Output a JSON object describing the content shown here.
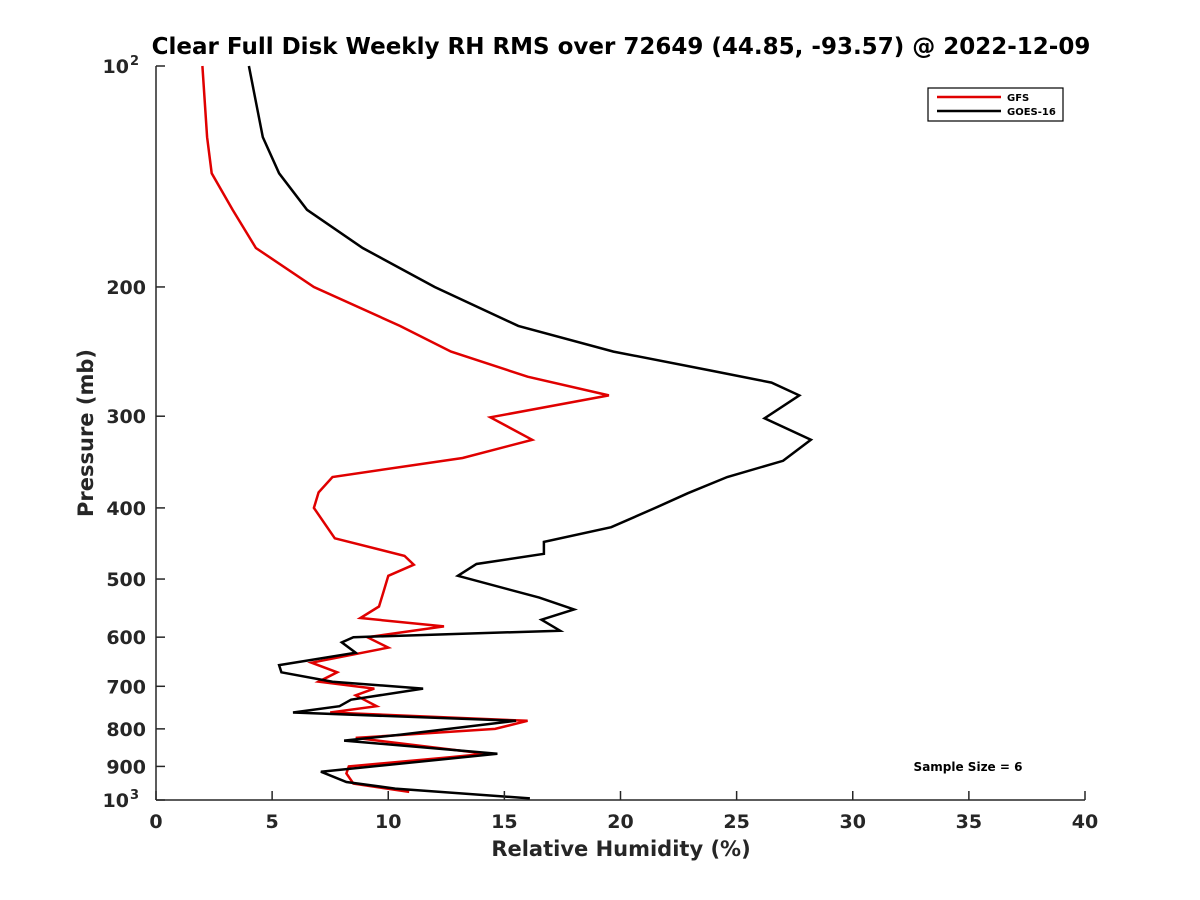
{
  "chart_data": {
    "type": "line",
    "title": "Clear Full Disk Weekly RH RMS over 72649 (44.85, -93.57) @ 2022-12-09",
    "xlabel": "Relative Humidity (%)",
    "ylabel": "Pressure (mb)",
    "xlim": [
      0,
      40
    ],
    "ylim": [
      100,
      1000
    ],
    "yscale": "log",
    "y_reversed": true,
    "x_ticks": [
      "0",
      "5",
      "10",
      "15",
      "20",
      "25",
      "30",
      "35",
      "40"
    ],
    "y_ticks": [
      {
        "value": 100,
        "base": "10",
        "exp": "2"
      },
      {
        "value": 200,
        "label": "200"
      },
      {
        "value": 300,
        "label": "300"
      },
      {
        "value": 400,
        "label": "400"
      },
      {
        "value": 500,
        "label": "500"
      },
      {
        "value": 600,
        "label": "600"
      },
      {
        "value": 700,
        "label": "700"
      },
      {
        "value": 800,
        "label": "800"
      },
      {
        "value": 900,
        "label": "900"
      },
      {
        "value": 1000,
        "base": "10",
        "exp": "3"
      }
    ],
    "legend_position": "top-right",
    "annotation": "Sample Size = 6",
    "series": [
      {
        "name": "GFS",
        "color": "#e00000",
        "points": [
          [
            2.0,
            100
          ],
          [
            2.2,
            125
          ],
          [
            2.4,
            140
          ],
          [
            3.3,
            157
          ],
          [
            4.3,
            177
          ],
          [
            6.8,
            200
          ],
          [
            10.5,
            226
          ],
          [
            12.7,
            245
          ],
          [
            16.0,
            265
          ],
          [
            19.5,
            281
          ],
          [
            14.4,
            301
          ],
          [
            16.2,
            323
          ],
          [
            13.2,
            342
          ],
          [
            7.6,
            363
          ],
          [
            7.0,
            381
          ],
          [
            6.8,
            400
          ],
          [
            7.7,
            440
          ],
          [
            10.7,
            465
          ],
          [
            11.1,
            478
          ],
          [
            10.0,
            495
          ],
          [
            9.8,
            520
          ],
          [
            9.6,
            545
          ],
          [
            8.8,
            565
          ],
          [
            12.4,
            580
          ],
          [
            9.1,
            600
          ],
          [
            10.0,
            620
          ],
          [
            6.7,
            650
          ],
          [
            7.8,
            670
          ],
          [
            7.0,
            690
          ],
          [
            9.4,
            705
          ],
          [
            8.6,
            720
          ],
          [
            9.5,
            745
          ],
          [
            7.5,
            760
          ],
          [
            16.0,
            780
          ],
          [
            14.6,
            800
          ],
          [
            8.6,
            823
          ],
          [
            14.2,
            865
          ],
          [
            12.6,
            875
          ],
          [
            8.3,
            900
          ],
          [
            8.2,
            920
          ],
          [
            8.5,
            950
          ],
          [
            10.9,
            975
          ]
        ]
      },
      {
        "name": "GOES-16",
        "color": "#000000",
        "points": [
          [
            4.0,
            100
          ],
          [
            4.6,
            125
          ],
          [
            5.3,
            140
          ],
          [
            6.5,
            157
          ],
          [
            8.9,
            177
          ],
          [
            12.0,
            200
          ],
          [
            15.6,
            226
          ],
          [
            19.7,
            245
          ],
          [
            23.9,
            260
          ],
          [
            26.5,
            270
          ],
          [
            27.7,
            281
          ],
          [
            26.2,
            302
          ],
          [
            28.2,
            323
          ],
          [
            27.0,
            345
          ],
          [
            24.6,
            363
          ],
          [
            22.9,
            382
          ],
          [
            21.5,
            400
          ],
          [
            19.6,
            425
          ],
          [
            16.7,
            445
          ],
          [
            16.7,
            462
          ],
          [
            13.8,
            477
          ],
          [
            13.0,
            495
          ],
          [
            16.5,
            530
          ],
          [
            18.0,
            550
          ],
          [
            16.6,
            568
          ],
          [
            17.4,
            588
          ],
          [
            8.5,
            600
          ],
          [
            8.0,
            610
          ],
          [
            8.6,
            630
          ],
          [
            5.3,
            655
          ],
          [
            5.4,
            670
          ],
          [
            7.6,
            690
          ],
          [
            11.5,
            705
          ],
          [
            8.4,
            730
          ],
          [
            7.9,
            745
          ],
          [
            5.9,
            760
          ],
          [
            15.5,
            780
          ],
          [
            10.5,
            815
          ],
          [
            8.1,
            830
          ],
          [
            14.7,
            865
          ],
          [
            7.1,
            915
          ],
          [
            8.2,
            945
          ],
          [
            10.3,
            965
          ],
          [
            16.1,
            995
          ]
        ]
      }
    ]
  }
}
